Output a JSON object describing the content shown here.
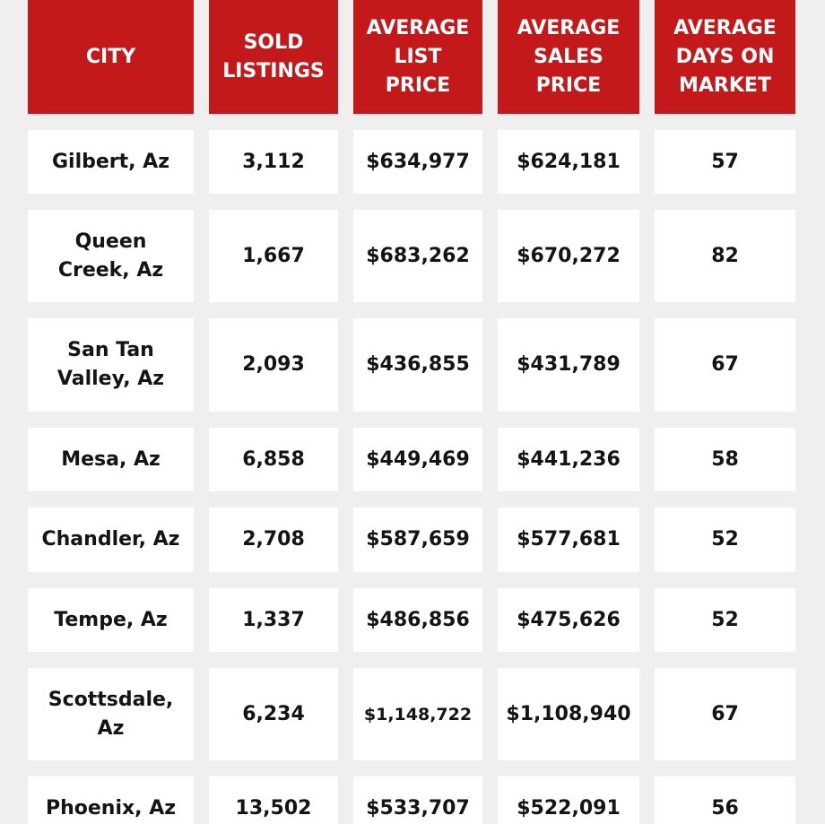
{
  "table": {
    "headers": {
      "city": "CITY",
      "sold_listings": "SOLD LISTINGS",
      "avg_list_price": "AVERAGE LIST PRICE",
      "avg_sales_price": "AVERAGE SALES PRICE",
      "avg_days_on_market": "AVERAGE DAYS ON MARKET"
    },
    "rows": [
      {
        "city": "Gilbert, Az",
        "sold": "3,112",
        "list": "$634,977",
        "sales": "$624,181",
        "days": "57"
      },
      {
        "city": "Queen Creek, Az",
        "sold": "1,667",
        "list": "$683,262",
        "sales": "$670,272",
        "days": "82"
      },
      {
        "city": "San Tan Valley, Az",
        "sold": "2,093",
        "list": "$436,855",
        "sales": "$431,789",
        "days": "67"
      },
      {
        "city": "Mesa, Az",
        "sold": "6,858",
        "list": "$449,469",
        "sales": "$441,236",
        "days": "58"
      },
      {
        "city": "Chandler, Az",
        "sold": "2,708",
        "list": "$587,659",
        "sales": "$577,681",
        "days": "52"
      },
      {
        "city": "Tempe, Az",
        "sold": "1,337",
        "list": "$486,856",
        "sales": "$475,626",
        "days": "52"
      },
      {
        "city": "Scottsdale, Az",
        "sold": "6,234",
        "list": "$1,148,722",
        "sales": "$1,108,940",
        "days": "67"
      },
      {
        "city": "Phoenix, Az",
        "sold": "13,502",
        "list": "$533,707",
        "sales": "$522,091",
        "days": "56"
      }
    ]
  },
  "colors": {
    "header_bg": "#c4191a",
    "header_text": "#ffffff",
    "cell_bg": "#ffffff",
    "page_bg": "#efefef"
  }
}
